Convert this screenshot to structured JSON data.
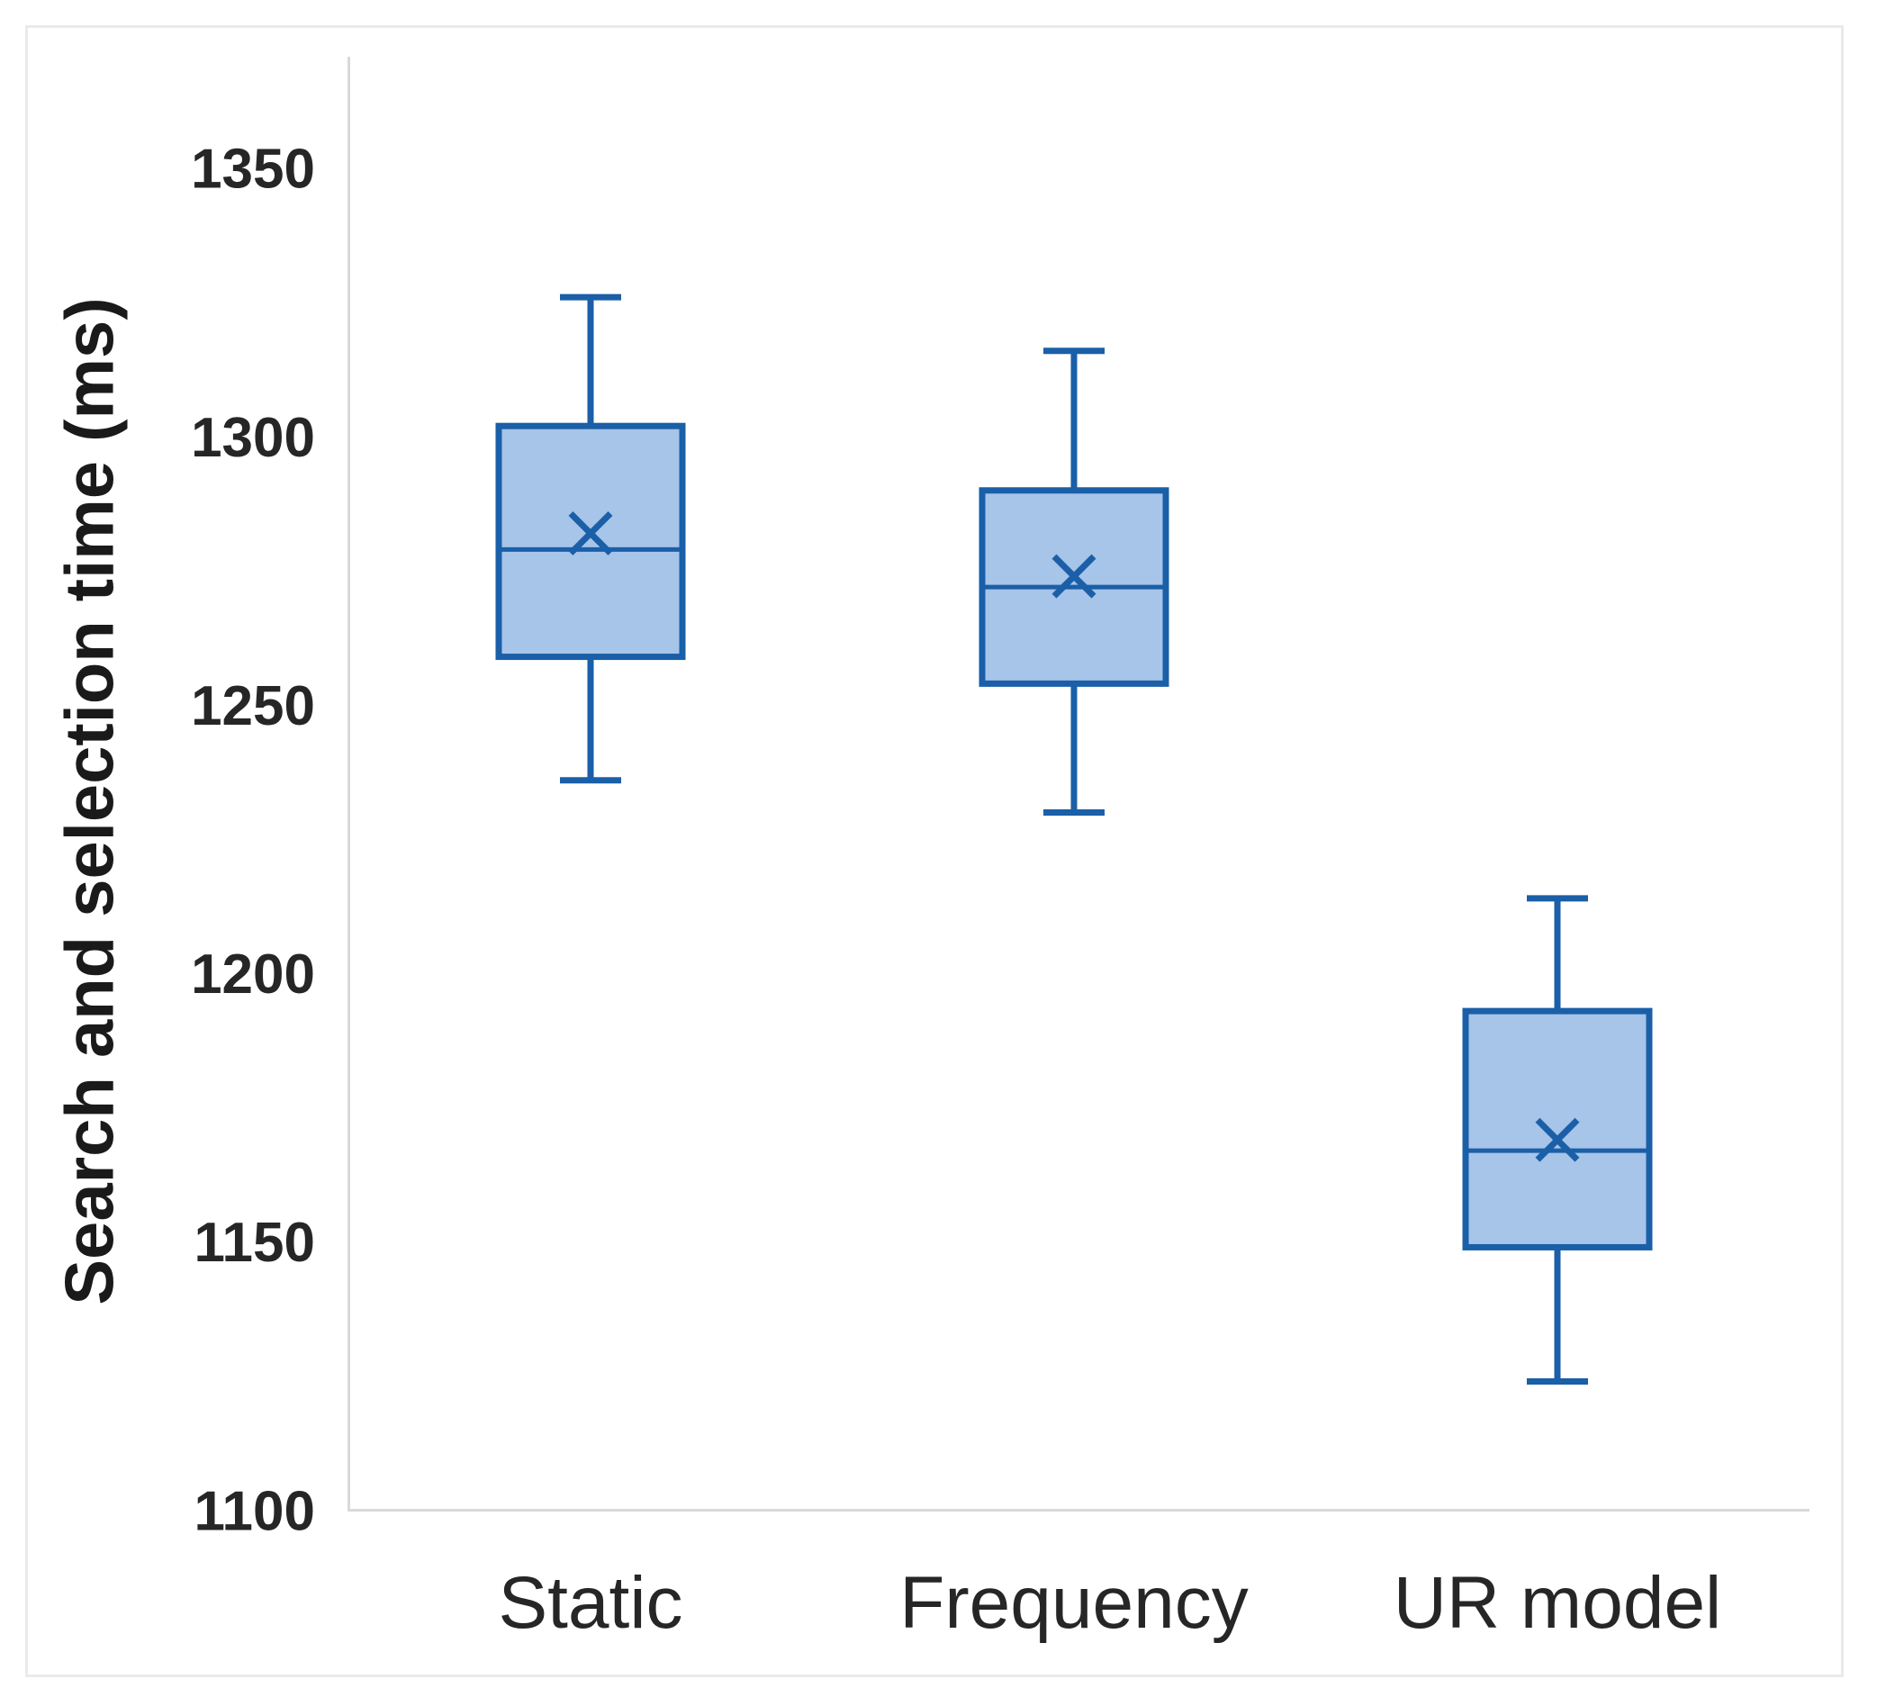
{
  "figure": {
    "background": "#ffffff",
    "frame_color": "#eaeaea"
  },
  "chart_data": {
    "type": "box",
    "title": "",
    "xlabel": "",
    "ylabel": "Search and selection time (ms)",
    "ylim": [
      1100,
      1370
    ],
    "yticks": [
      1350,
      1300,
      1250,
      1200,
      1150,
      1100
    ],
    "grid": false,
    "legend": false,
    "categories": [
      "Static",
      "Frequency",
      "UR model"
    ],
    "series": [
      {
        "name": "Static",
        "whisker_low": 1236,
        "q1": 1259,
        "median": 1279,
        "q3": 1302,
        "whisker_high": 1326,
        "mean": 1282
      },
      {
        "name": "Frequency",
        "whisker_low": 1230,
        "q1": 1254,
        "median": 1272,
        "q3": 1290,
        "whisker_high": 1316,
        "mean": 1274
      },
      {
        "name": "UR model",
        "whisker_low": 1124,
        "q1": 1149,
        "median": 1167,
        "q3": 1193,
        "whisker_high": 1214,
        "mean": 1169
      }
    ],
    "colors": {
      "box_fill": "#A7C4E9",
      "box_stroke": "#1A5FA8",
      "axis_line": "#D9D9D9",
      "text": "#262626"
    }
  }
}
